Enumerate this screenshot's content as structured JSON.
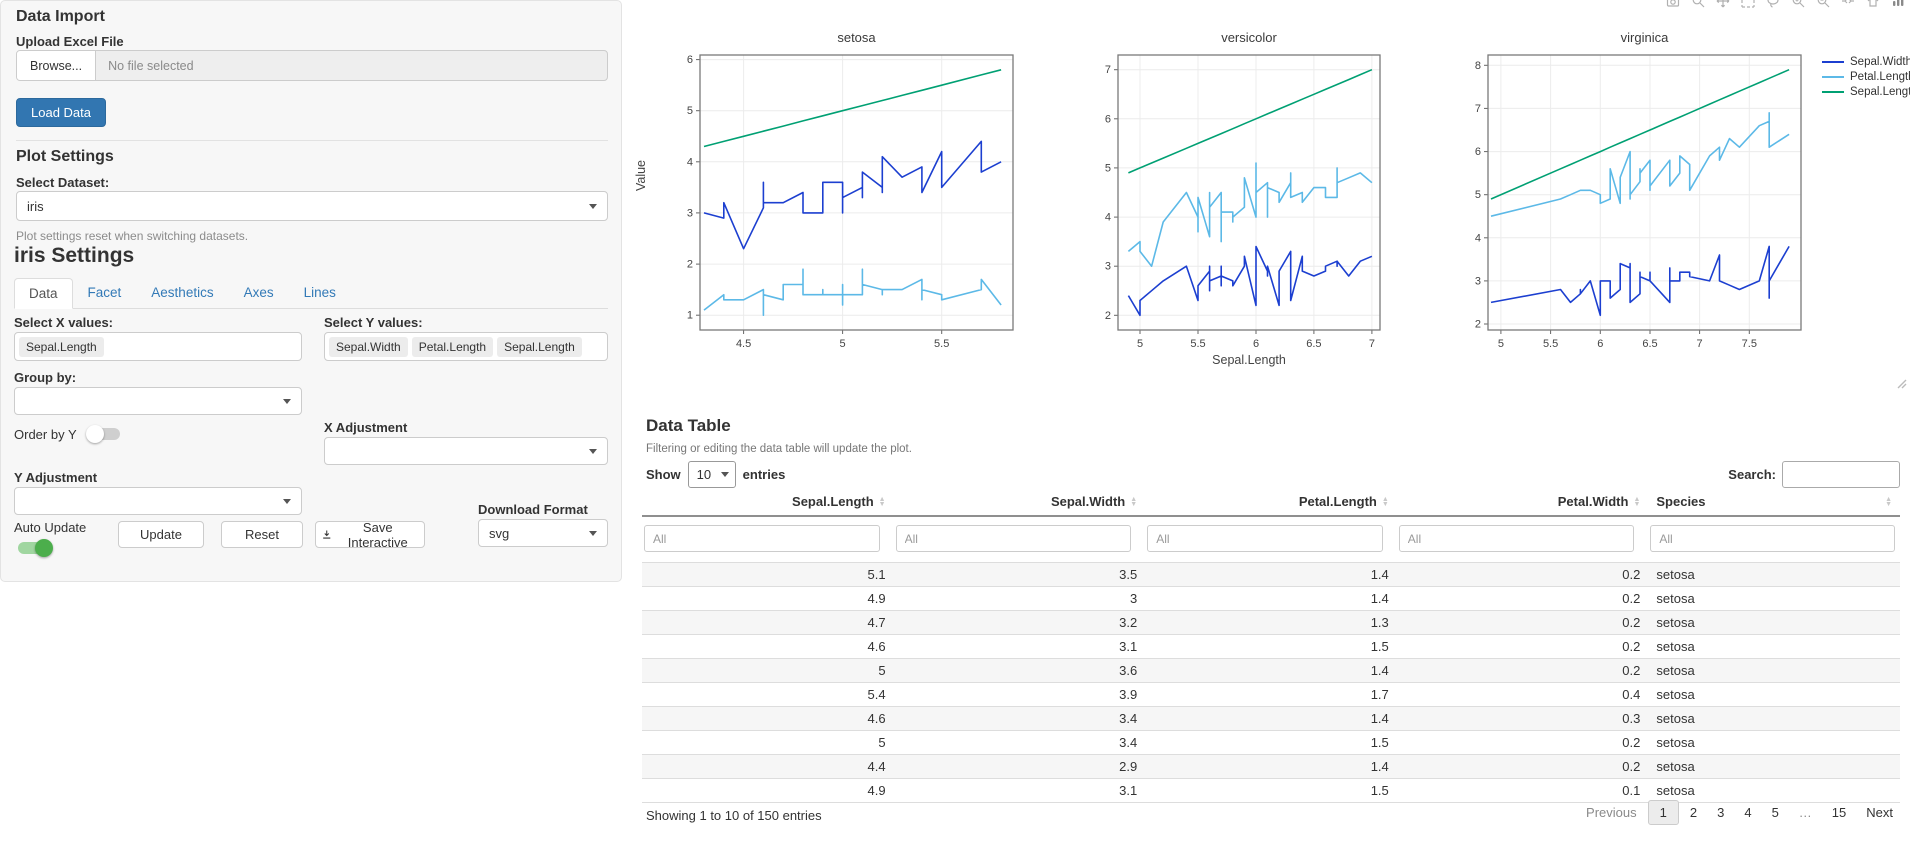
{
  "sidebar": {
    "data_import": {
      "heading": "Data Import",
      "upload_label": "Upload Excel File",
      "browse_label": "Browse...",
      "file_status": "No file selected",
      "load_button": "Load Data"
    },
    "plot_settings": {
      "heading": "Plot Settings",
      "dataset_label": "Select Dataset:",
      "dataset_value": "iris",
      "helper": "Plot settings reset when switching datasets."
    },
    "settings": {
      "heading": "iris Settings",
      "tabs": [
        {
          "label": "Data",
          "active": true
        },
        {
          "label": "Facet",
          "active": false
        },
        {
          "label": "Aesthetics",
          "active": false
        },
        {
          "label": "Axes",
          "active": false
        },
        {
          "label": "Lines",
          "active": false
        }
      ],
      "select_x": {
        "label": "Select X values:",
        "values": [
          "Sepal.Length"
        ]
      },
      "select_y": {
        "label": "Select Y values:",
        "values": [
          "Sepal.Width",
          "Petal.Length",
          "Sepal.Length"
        ]
      },
      "group_by": {
        "label": "Group by:",
        "value": ""
      },
      "order_by_y": {
        "label": "Order by Y",
        "on": false
      },
      "x_adjustment": {
        "label": "X Adjustment",
        "value": ""
      },
      "y_adjustment": {
        "label": "Y Adjustment",
        "value": ""
      },
      "auto_update": {
        "label": "Auto Update",
        "on": true
      },
      "buttons": {
        "update": "Update",
        "reset": "Reset",
        "save_interactive": "Save Interactive"
      },
      "download_format": {
        "label": "Download Format",
        "value": "svg"
      }
    }
  },
  "plot": {
    "modebar_icons": [
      "camera",
      "zoom",
      "pan",
      "box-select",
      "lasso",
      "zoom-in",
      "zoom-out",
      "autoscale",
      "reset-axes",
      "plotly-logo"
    ]
  },
  "chart_data": {
    "type": "line",
    "facet_by": "Species",
    "x_variable": "Sepal.Length",
    "xlabel": "Sepal.Length",
    "ylabel": "Value",
    "grid": true,
    "legend_position": "right",
    "series_names": [
      "Sepal.Width",
      "Petal.Length",
      "Sepal.Length"
    ],
    "series_colors": {
      "Sepal.Width": "#1c3fd0",
      "Petal.Length": "#5cb9e7",
      "Sepal.Length": "#00a073"
    },
    "facets": [
      {
        "title": "setosa",
        "xlim": [
          4.28,
          5.86
        ],
        "ylim": [
          0.71,
          6.09
        ],
        "xticks": [
          4.5,
          5,
          5.5
        ],
        "yticks": [
          1,
          2,
          3,
          4,
          5,
          6
        ],
        "x": [
          4.3,
          4.4,
          4.4,
          4.4,
          4.5,
          4.6,
          4.6,
          4.6,
          4.6,
          4.7,
          4.7,
          4.8,
          4.8,
          4.8,
          4.8,
          4.8,
          4.9,
          4.9,
          4.9,
          4.9,
          5.0,
          5.0,
          5.0,
          5.0,
          5.0,
          5.0,
          5.0,
          5.0,
          5.1,
          5.1,
          5.1,
          5.1,
          5.1,
          5.1,
          5.1,
          5.1,
          5.2,
          5.2,
          5.2,
          5.3,
          5.4,
          5.4,
          5.4,
          5.4,
          5.4,
          5.5,
          5.5,
          5.7,
          5.7,
          5.8
        ],
        "series": {
          "Sepal.Width": [
            3.0,
            2.9,
            3.0,
            3.2,
            2.3,
            3.1,
            3.4,
            3.6,
            3.2,
            3.2,
            3.2,
            3.4,
            3.0,
            3.4,
            3.1,
            3.0,
            3.0,
            3.1,
            3.1,
            3.6,
            3.6,
            3.4,
            3.0,
            3.4,
            3.2,
            3.5,
            3.5,
            3.3,
            3.5,
            3.5,
            3.8,
            3.7,
            3.3,
            3.4,
            3.8,
            3.8,
            3.5,
            3.4,
            4.1,
            3.7,
            3.9,
            3.7,
            3.9,
            3.4,
            3.4,
            4.2,
            3.5,
            4.4,
            3.8,
            4.0
          ],
          "Petal.Length": [
            1.1,
            1.4,
            1.3,
            1.3,
            1.3,
            1.5,
            1.4,
            1.0,
            1.4,
            1.3,
            1.6,
            1.6,
            1.4,
            1.9,
            1.6,
            1.4,
            1.4,
            1.5,
            1.5,
            1.4,
            1.4,
            1.5,
            1.6,
            1.6,
            1.2,
            1.3,
            1.6,
            1.4,
            1.4,
            1.4,
            1.5,
            1.5,
            1.7,
            1.5,
            1.9,
            1.6,
            1.5,
            1.4,
            1.5,
            1.5,
            1.7,
            1.5,
            1.3,
            1.7,
            1.5,
            1.4,
            1.3,
            1.5,
            1.7,
            1.2
          ]
        }
      },
      {
        "title": "versicolor",
        "xlim": [
          4.81,
          7.07
        ],
        "ylim": [
          1.7,
          7.3
        ],
        "xticks": [
          5,
          5.5,
          6,
          6.5,
          7
        ],
        "yticks": [
          2,
          3,
          4,
          5,
          6,
          7
        ],
        "x": [
          4.9,
          5.0,
          5.0,
          5.1,
          5.2,
          5.4,
          5.5,
          5.5,
          5.5,
          5.5,
          5.5,
          5.6,
          5.6,
          5.6,
          5.6,
          5.6,
          5.7,
          5.7,
          5.7,
          5.7,
          5.7,
          5.8,
          5.8,
          5.8,
          5.9,
          5.9,
          6.0,
          6.0,
          6.0,
          6.0,
          6.1,
          6.1,
          6.1,
          6.1,
          6.2,
          6.2,
          6.3,
          6.3,
          6.3,
          6.4,
          6.4,
          6.5,
          6.6,
          6.6,
          6.7,
          6.7,
          6.7,
          6.8,
          6.9,
          7.0
        ],
        "series": {
          "Sepal.Width": [
            2.4,
            2.0,
            2.3,
            2.5,
            2.7,
            3.0,
            2.3,
            2.4,
            2.4,
            2.5,
            2.6,
            2.9,
            3.0,
            2.5,
            3.0,
            2.7,
            2.8,
            2.6,
            3.0,
            2.9,
            2.8,
            2.7,
            2.7,
            2.6,
            3.0,
            3.2,
            2.2,
            2.9,
            2.7,
            3.4,
            2.9,
            2.8,
            2.8,
            3.0,
            2.2,
            2.9,
            3.3,
            2.5,
            2.3,
            3.2,
            2.9,
            2.8,
            2.9,
            3.0,
            3.1,
            3.0,
            3.1,
            2.8,
            3.1,
            3.2
          ],
          "Petal.Length": [
            3.3,
            3.5,
            3.3,
            3.0,
            3.9,
            4.5,
            4.0,
            3.8,
            3.7,
            4.0,
            4.4,
            3.6,
            4.5,
            3.9,
            4.1,
            4.2,
            4.5,
            3.5,
            4.2,
            4.2,
            4.1,
            4.1,
            3.9,
            4.0,
            4.2,
            4.8,
            4.0,
            4.5,
            5.1,
            4.5,
            4.7,
            4.0,
            4.7,
            4.6,
            4.5,
            4.3,
            4.7,
            4.9,
            4.4,
            4.5,
            4.3,
            4.6,
            4.6,
            4.4,
            4.4,
            5.0,
            4.7,
            4.8,
            4.9,
            4.7
          ]
        }
      },
      {
        "title": "virginica",
        "xlim": [
          4.87,
          8.02
        ],
        "ylim": [
          1.86,
          8.24
        ],
        "xticks": [
          5,
          5.5,
          6,
          6.5,
          7,
          7.5
        ],
        "yticks": [
          2,
          3,
          4,
          5,
          6,
          7,
          8
        ],
        "x": [
          4.9,
          5.6,
          5.7,
          5.8,
          5.8,
          5.8,
          5.9,
          6.0,
          6.0,
          6.1,
          6.1,
          6.2,
          6.2,
          6.3,
          6.3,
          6.3,
          6.3,
          6.3,
          6.3,
          6.4,
          6.4,
          6.4,
          6.4,
          6.4,
          6.5,
          6.5,
          6.5,
          6.5,
          6.7,
          6.7,
          6.7,
          6.7,
          6.7,
          6.8,
          6.8,
          6.9,
          6.9,
          6.9,
          7.1,
          7.2,
          7.2,
          7.2,
          7.3,
          7.4,
          7.6,
          7.7,
          7.7,
          7.7,
          7.7,
          7.9
        ],
        "series": {
          "Sepal.Width": [
            2.5,
            2.8,
            2.5,
            2.7,
            2.8,
            2.7,
            3.0,
            2.2,
            3.0,
            3.0,
            2.6,
            2.8,
            3.4,
            3.3,
            2.9,
            2.7,
            2.8,
            3.4,
            2.5,
            2.7,
            3.2,
            2.8,
            2.8,
            3.1,
            3.0,
            3.2,
            3.0,
            3.0,
            2.5,
            3.3,
            3.1,
            3.3,
            3.0,
            3.0,
            3.2,
            3.2,
            3.1,
            3.1,
            3.0,
            3.6,
            3.2,
            3.0,
            2.9,
            2.8,
            3.0,
            3.8,
            2.6,
            2.8,
            3.0,
            3.8
          ],
          "Petal.Length": [
            4.5,
            4.9,
            5.0,
            5.1,
            5.1,
            5.1,
            5.1,
            5.0,
            4.8,
            4.9,
            5.6,
            4.8,
            5.4,
            6.0,
            5.6,
            4.9,
            5.1,
            5.6,
            5.0,
            5.3,
            5.3,
            5.6,
            5.6,
            5.5,
            5.8,
            5.1,
            5.5,
            5.2,
            5.8,
            5.7,
            5.6,
            5.7,
            5.2,
            5.5,
            5.9,
            5.7,
            5.4,
            5.1,
            5.9,
            6.1,
            6.0,
            5.8,
            6.3,
            6.1,
            6.6,
            6.7,
            6.9,
            6.7,
            6.1,
            6.4
          ]
        }
      }
    ]
  },
  "table": {
    "heading": "Data Table",
    "note": "Filtering or editing the data table will update the plot.",
    "show_label": "Show",
    "show_value": "10",
    "entries_label": "entries",
    "search_label": "Search:",
    "search_value": "",
    "filter_placeholder": "All",
    "columns": [
      {
        "label": "Sepal.Length",
        "align": "right"
      },
      {
        "label": "Sepal.Width",
        "align": "right"
      },
      {
        "label": "Petal.Length",
        "align": "right"
      },
      {
        "label": "Petal.Width",
        "align": "right"
      },
      {
        "label": "Species",
        "align": "left"
      }
    ],
    "rows": [
      [
        "5.1",
        "3.5",
        "1.4",
        "0.2",
        "setosa"
      ],
      [
        "4.9",
        "3",
        "1.4",
        "0.2",
        "setosa"
      ],
      [
        "4.7",
        "3.2",
        "1.3",
        "0.2",
        "setosa"
      ],
      [
        "4.6",
        "3.1",
        "1.5",
        "0.2",
        "setosa"
      ],
      [
        "5",
        "3.6",
        "1.4",
        "0.2",
        "setosa"
      ],
      [
        "5.4",
        "3.9",
        "1.7",
        "0.4",
        "setosa"
      ],
      [
        "4.6",
        "3.4",
        "1.4",
        "0.3",
        "setosa"
      ],
      [
        "5",
        "3.4",
        "1.5",
        "0.2",
        "setosa"
      ],
      [
        "4.4",
        "2.9",
        "1.4",
        "0.2",
        "setosa"
      ],
      [
        "4.9",
        "3.1",
        "1.5",
        "0.1",
        "setosa"
      ]
    ],
    "info": "Showing 1 to 10 of 150 entries",
    "pagination": {
      "previous": "Previous",
      "pages": [
        "1",
        "2",
        "3",
        "4",
        "5",
        "…",
        "15"
      ],
      "active": "1",
      "next": "Next"
    }
  },
  "colors": {
    "primary_button": "#3276b1",
    "tab_link": "#337ab7",
    "toggle_on": "#4cae4c",
    "sepal_width_line": "#1c3fd0",
    "petal_length_line": "#5cb9e7",
    "sepal_length_line": "#00a073"
  }
}
